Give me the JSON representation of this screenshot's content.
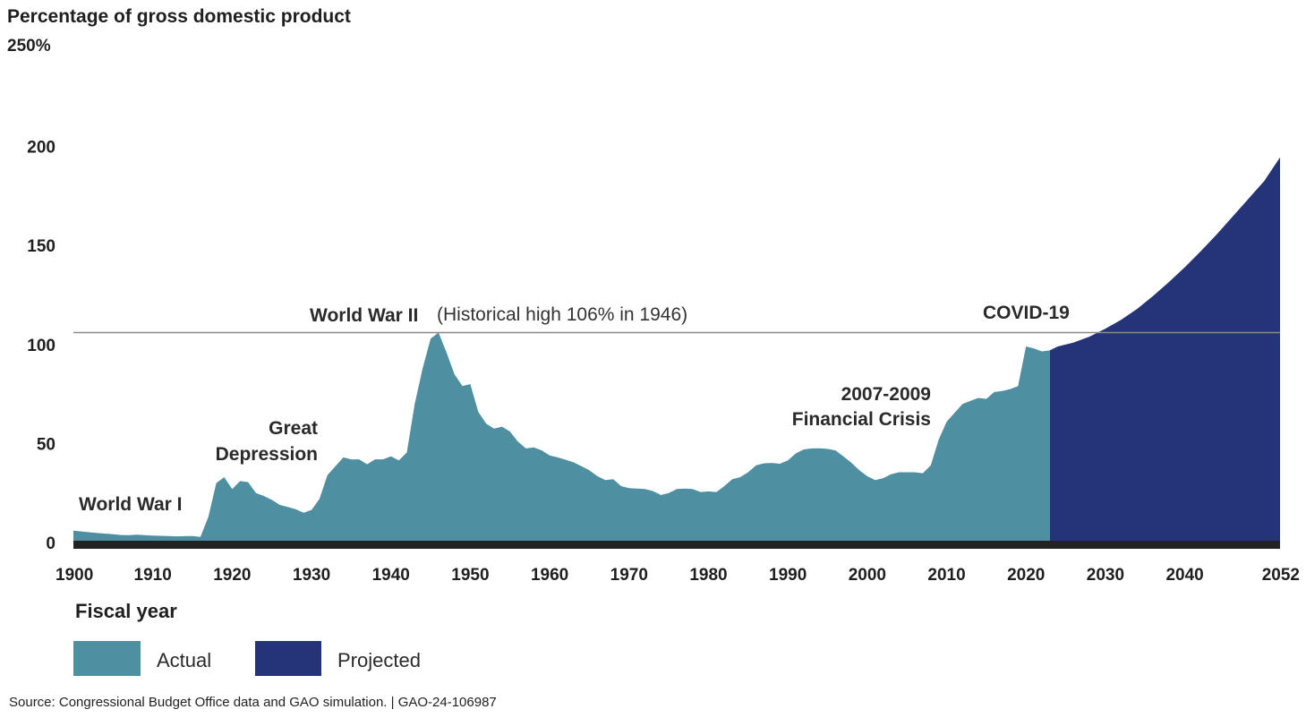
{
  "chart_data": {
    "type": "area",
    "title": "Percentage of gross domestic product",
    "ylabel": "Percentage of gross domestic product",
    "xlabel": "Fiscal year",
    "xlim": [
      1900,
      2052
    ],
    "ylim": [
      0,
      250
    ],
    "yticks": [
      0,
      50,
      100,
      150,
      200,
      250
    ],
    "ytick_labels": [
      "0",
      "50",
      "100",
      "150",
      "200",
      "250%"
    ],
    "xticks": [
      1900,
      1910,
      1920,
      1930,
      1940,
      1950,
      1960,
      1970,
      1980,
      1990,
      2000,
      2010,
      2020,
      2030,
      2040,
      2052
    ],
    "series": [
      {
        "name": "Actual",
        "color": "#4e8fa2",
        "x": [
          1900,
          1901,
          1902,
          1903,
          1904,
          1905,
          1906,
          1907,
          1908,
          1909,
          1910,
          1911,
          1912,
          1913,
          1914,
          1915,
          1916,
          1917,
          1918,
          1919,
          1920,
          1921,
          1922,
          1923,
          1924,
          1925,
          1926,
          1927,
          1928,
          1929,
          1930,
          1931,
          1932,
          1933,
          1934,
          1935,
          1936,
          1937,
          1938,
          1939,
          1940,
          1941,
          1942,
          1943,
          1944,
          1945,
          1946,
          1947,
          1948,
          1949,
          1950,
          1951,
          1952,
          1953,
          1954,
          1955,
          1956,
          1957,
          1958,
          1959,
          1960,
          1961,
          1962,
          1963,
          1964,
          1965,
          1966,
          1967,
          1968,
          1969,
          1970,
          1971,
          1972,
          1973,
          1974,
          1975,
          1976,
          1977,
          1978,
          1979,
          1980,
          1981,
          1982,
          1983,
          1984,
          1985,
          1986,
          1987,
          1988,
          1989,
          1990,
          1991,
          1992,
          1993,
          1994,
          1995,
          1996,
          1997,
          1998,
          1999,
          2000,
          2001,
          2002,
          2003,
          2004,
          2005,
          2006,
          2007,
          2008,
          2009,
          2010,
          2011,
          2012,
          2013,
          2014,
          2015,
          2016,
          2017,
          2018,
          2019,
          2020,
          2021,
          2022,
          2023
        ],
        "values": [
          6,
          5.6,
          5.2,
          4.8,
          4.5,
          4.2,
          3.8,
          3.7,
          4,
          3.7,
          3.5,
          3.4,
          3.3,
          3.1,
          3.2,
          3.3,
          2.8,
          13,
          30,
          33,
          27,
          31,
          30.5,
          25,
          23.5,
          21.5,
          19,
          18,
          16.8,
          15,
          16.5,
          22,
          34,
          38.5,
          43,
          42,
          42,
          39.5,
          42,
          42,
          43.5,
          41.5,
          45.5,
          70,
          88,
          103,
          106,
          96,
          85,
          79,
          80,
          66,
          60,
          57.5,
          58.5,
          56,
          51,
          47.5,
          48,
          46.5,
          44,
          43,
          41.8,
          40.5,
          38.5,
          36.5,
          33.5,
          31.5,
          32,
          28.5,
          27.5,
          27.2,
          27,
          26,
          24,
          25,
          27,
          27.2,
          27,
          25.5,
          25.8,
          25.5,
          28.5,
          32,
          33,
          35.5,
          39,
          40,
          40.2,
          39.8,
          41.5,
          45,
          47,
          47.5,
          47.6,
          47.3,
          46.5,
          43.5,
          40.3,
          36.5,
          33.5,
          31.5,
          32.5,
          34.5,
          35.5,
          35.5,
          35.5,
          35,
          39,
          52,
          61,
          65.5,
          70,
          71.5,
          73,
          72.5,
          76,
          76.5,
          77.5,
          79,
          99,
          98,
          96.5,
          97
        ]
      },
      {
        "name": "Projected",
        "color": "#253478",
        "x": [
          2023,
          2024,
          2026,
          2028,
          2030,
          2032,
          2034,
          2036,
          2038,
          2040,
          2042,
          2044,
          2046,
          2048,
          2050,
          2052
        ],
        "values": [
          97,
          99,
          101,
          104,
          108,
          112.5,
          118,
          124.5,
          131.5,
          139,
          147,
          155.5,
          164.5,
          173.5,
          182.5,
          194.5
        ]
      }
    ],
    "reference_line": {
      "value": 106,
      "label_bold": "World War II",
      "label": "(Historical high 106% in 1946)"
    },
    "annotations": [
      "World War I",
      "Great",
      "Depression",
      "2007-2009",
      "Financial Crisis",
      "COVID-19"
    ],
    "legend": [
      {
        "label": "Actual",
        "color": "#4e8fa2"
      },
      {
        "label": "Projected",
        "color": "#253478"
      }
    ],
    "source": "Source: Congressional Budget Office data and GAO simulation.  |  GAO-24-106987"
  }
}
